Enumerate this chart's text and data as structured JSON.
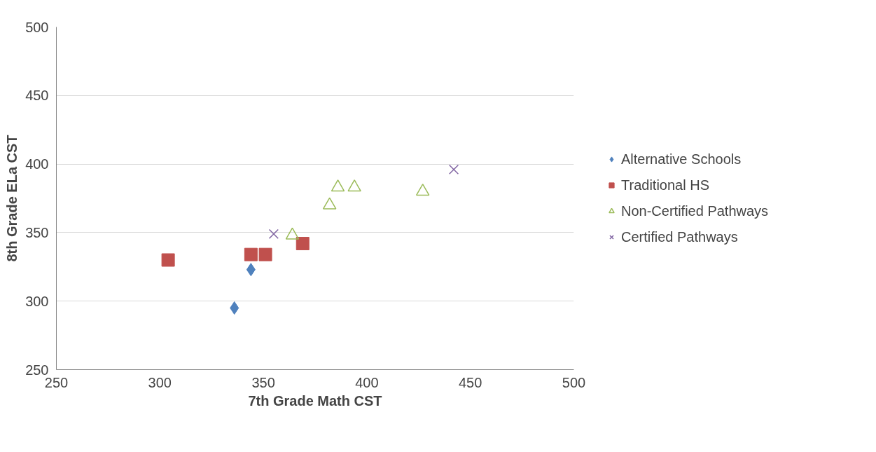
{
  "chart_data": {
    "type": "scatter",
    "xlabel": "7th Grade Math CST",
    "ylabel": "8th Grade ELa CST",
    "xlim": [
      250,
      500
    ],
    "ylim": [
      250,
      500
    ],
    "xticks": [
      250,
      300,
      350,
      400,
      450,
      500
    ],
    "yticks": [
      250,
      300,
      350,
      400,
      450,
      500
    ],
    "grid": "y",
    "legend": "right",
    "series": [
      {
        "name": "Alternative Schools",
        "color": "#4f81bd",
        "marker": "diamond",
        "x": [
          336,
          344
        ],
        "values": [
          295,
          323
        ]
      },
      {
        "name": "Traditional HS",
        "color": "#c0504d",
        "marker": "square",
        "x": [
          304,
          344,
          351,
          369
        ],
        "values": [
          330,
          334,
          334,
          342
        ]
      },
      {
        "name": "Non-Certified Pathways",
        "color": "#9bbb59",
        "marker": "triangle",
        "x": [
          364,
          382,
          386,
          394,
          427
        ],
        "values": [
          348,
          370,
          383,
          383,
          380
        ]
      },
      {
        "name": "Certified Pathways",
        "color": "#8064a2",
        "marker": "cross",
        "x": [
          355,
          442
        ],
        "values": [
          349,
          396
        ]
      }
    ]
  }
}
